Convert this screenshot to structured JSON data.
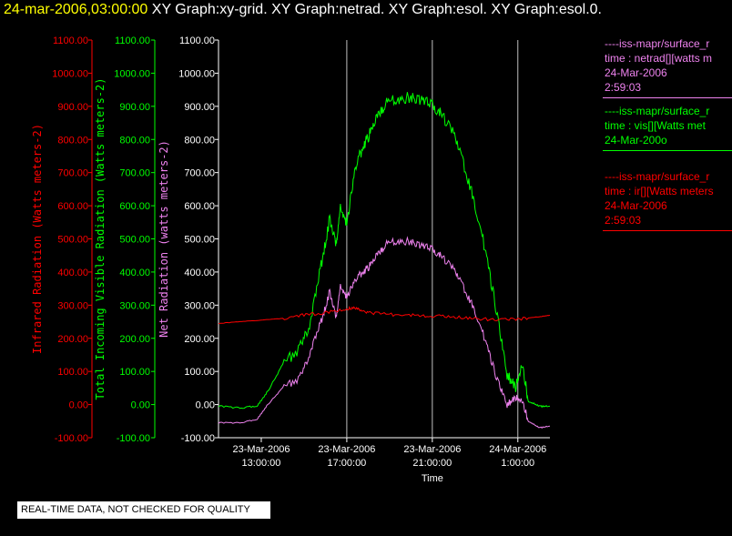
{
  "header": {
    "date": "24-mar-2006,03:00:00",
    "titles": "XY Graph:xy-grid.  XY Graph:netrad.  XY Graph:esol.  XY Graph:esol.0."
  },
  "notice": "REAL-TIME DATA, NOT CHECKED FOR QUALITY",
  "colors": {
    "ir": "#ff0000",
    "vis": "#00ff00",
    "net": "#ee82ee",
    "axis_title": "#ffffff",
    "grid": "#c0c0c0"
  },
  "legend": [
    {
      "series": "net",
      "lines": [
        "----iss-mapr/surface_r",
        "time : netrad[][watts m",
        "24-Mar-2006",
        "2:59:03"
      ]
    },
    {
      "series": "vis",
      "lines": [
        "----iss-mapr/surface_r",
        "time : vis[][Watts met",
        "24-Mar-200o"
      ]
    },
    {
      "series": "ir",
      "lines": [
        "----iss-mapr/surface_r",
        "time : ir[][Watts meters",
        "24-Mar-2006",
        "2:59:03"
      ]
    }
  ],
  "chart_data": {
    "type": "line",
    "xlabel": "Time",
    "x_ticks": [
      {
        "line1": "23-Mar-2006",
        "line2": "13:00:00",
        "hour": 13
      },
      {
        "line1": "23-Mar-2006",
        "line2": "17:00:00",
        "hour": 17
      },
      {
        "line1": "23-Mar-2006",
        "line2": "21:00:00",
        "hour": 21
      },
      {
        "line1": "24-Mar-2006",
        "line2": "1:00:00",
        "hour": 25
      }
    ],
    "xlim": [
      11.0,
      26.5
    ],
    "ylim": [
      -100,
      1100
    ],
    "y_ticks": [
      "-100.00",
      "0.00",
      "100.00",
      "200.00",
      "300.00",
      "400.00",
      "500.00",
      "600.00",
      "700.00",
      "800.00",
      "900.00",
      "1000.00",
      "1100.00"
    ],
    "y_tick_values": [
      -100,
      0,
      100,
      200,
      300,
      400,
      500,
      600,
      700,
      800,
      900,
      1000,
      1100
    ],
    "axes": [
      {
        "series": "ir",
        "label": "Infrared Radiation (Watts meters-2)"
      },
      {
        "series": "vis",
        "label": "Total Incoming Visible Radiation (Watts meters-2)"
      },
      {
        "series": "net",
        "label": "Net Radiation (watts meters-2)"
      }
    ],
    "grid_x_hours": [
      17,
      21,
      25
    ],
    "series": [
      {
        "key": "vis",
        "x": [
          11.0,
          12.0,
          12.8,
          13.3,
          14.0,
          14.8,
          15.3,
          15.8,
          16.2,
          16.5,
          16.7,
          17.0,
          17.4,
          17.8,
          18.1,
          18.5,
          18.9,
          19.5,
          20.0,
          20.5,
          21.0,
          21.4,
          22.0,
          22.5,
          23.0,
          23.5,
          24.0,
          24.5,
          24.9,
          25.2,
          25.5,
          26.0,
          26.5
        ],
        "y": [
          -5,
          -10,
          -5,
          40,
          120,
          170,
          250,
          420,
          560,
          480,
          600,
          540,
          720,
          780,
          820,
          880,
          910,
          925,
          925,
          920,
          905,
          880,
          820,
          720,
          600,
          460,
          280,
          90,
          50,
          120,
          10,
          -5,
          -5
        ]
      },
      {
        "key": "net",
        "x": [
          11.0,
          12.0,
          12.8,
          13.3,
          14.0,
          14.8,
          15.3,
          15.8,
          16.2,
          16.5,
          16.7,
          17.0,
          17.4,
          17.8,
          18.1,
          18.5,
          18.9,
          19.5,
          20.0,
          20.5,
          21.0,
          21.4,
          22.0,
          22.5,
          23.0,
          23.5,
          24.0,
          24.5,
          24.9,
          25.2,
          25.5,
          26.0,
          26.5
        ],
        "y": [
          -55,
          -55,
          -45,
          0,
          50,
          80,
          160,
          250,
          340,
          260,
          360,
          320,
          380,
          400,
          420,
          460,
          485,
          495,
          490,
          480,
          470,
          450,
          410,
          350,
          280,
          190,
          80,
          0,
          20,
          10,
          -50,
          -70,
          -65
        ]
      },
      {
        "key": "ir",
        "x": [
          11.0,
          12.0,
          13.0,
          14.0,
          15.0,
          16.0,
          17.0,
          17.5,
          18.0,
          19.0,
          20.0,
          21.0,
          22.0,
          23.0,
          24.0,
          25.0,
          26.0,
          26.5
        ],
        "y": [
          245,
          250,
          255,
          260,
          270,
          278,
          290,
          290,
          278,
          272,
          270,
          268,
          265,
          260,
          255,
          258,
          265,
          270
        ]
      }
    ]
  }
}
